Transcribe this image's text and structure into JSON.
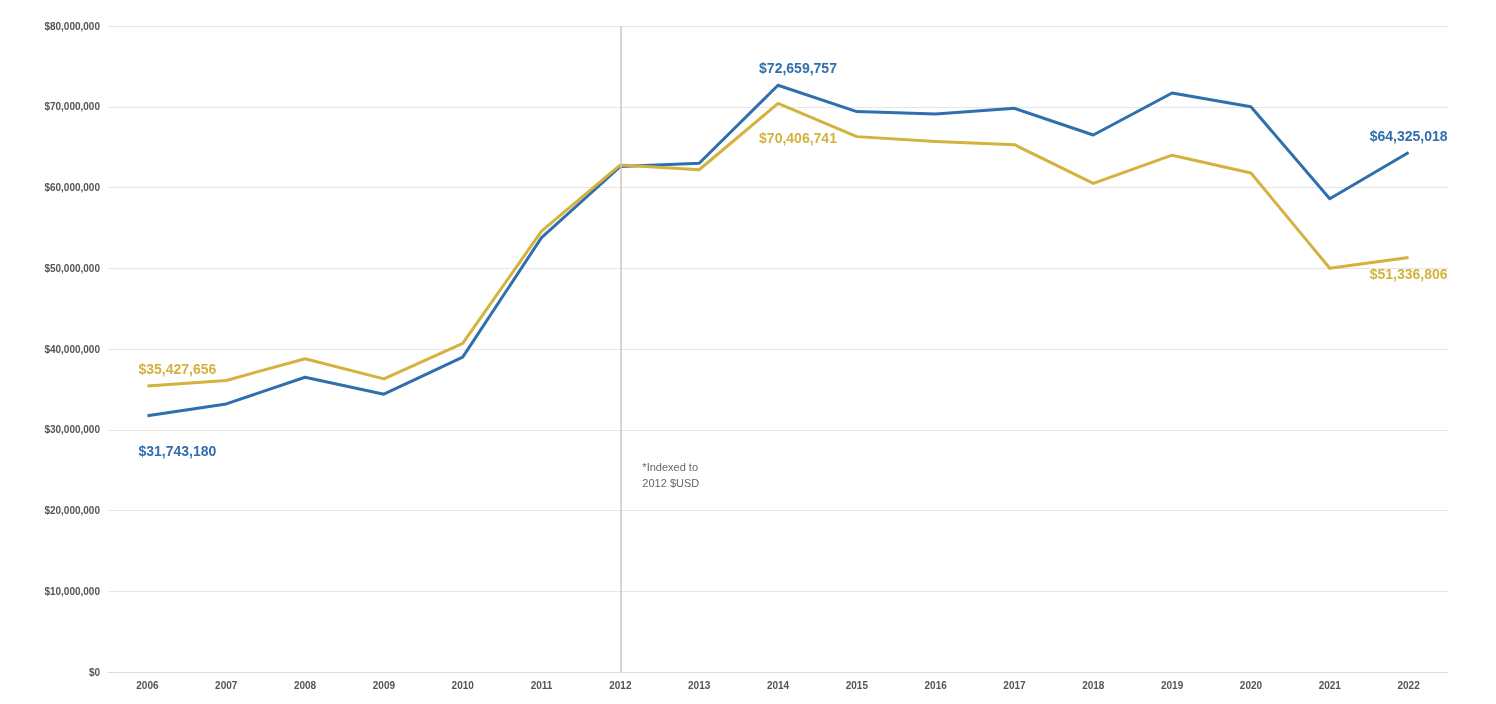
{
  "chart_data": {
    "type": "line",
    "categories": [
      "2006",
      "2007",
      "2008",
      "2009",
      "2010",
      "2011",
      "2012",
      "2013",
      "2014",
      "2015",
      "2016",
      "2017",
      "2018",
      "2019",
      "2020",
      "2021",
      "2022"
    ],
    "series": [
      {
        "color": "#2f6fad",
        "values": [
          31743180,
          33200000,
          36500000,
          34400000,
          39000000,
          53800000,
          62600000,
          63000000,
          72659757,
          69400000,
          69100000,
          69800000,
          66500000,
          71700000,
          70000000,
          58600000,
          64325018
        ],
        "value_labels": [
          "$31,743,180",
          null,
          null,
          null,
          null,
          null,
          null,
          null,
          "$72,659,757",
          null,
          null,
          null,
          null,
          null,
          null,
          null,
          "$64,325,018"
        ]
      },
      {
        "color": "#d4b23e",
        "values": [
          35427656,
          36100000,
          38800000,
          36300000,
          40700000,
          54600000,
          62800000,
          62200000,
          70406741,
          66300000,
          65700000,
          65300000,
          60500000,
          64000000,
          61800000,
          50000000,
          51336806
        ],
        "value_labels": [
          "$35,427,656",
          null,
          null,
          null,
          null,
          null,
          null,
          null,
          "$70,406,741",
          null,
          null,
          null,
          null,
          null,
          null,
          null,
          "$51,336,806"
        ]
      }
    ],
    "ylim": [
      0,
      80000000
    ],
    "yticks": [
      {
        "value": 0,
        "label": "$0"
      },
      {
        "value": 10000000,
        "label": "$10,000,000"
      },
      {
        "value": 20000000,
        "label": "$20,000,000"
      },
      {
        "value": 30000000,
        "label": "$30,000,000"
      },
      {
        "value": 40000000,
        "label": "$40,000,000"
      },
      {
        "value": 50000000,
        "label": "$50,000,000"
      },
      {
        "value": 60000000,
        "label": "$60,000,000"
      },
      {
        "value": 70000000,
        "label": "$70,000,000"
      },
      {
        "value": 80000000,
        "label": "$80,000,000"
      }
    ],
    "grid": "y",
    "marker": "none",
    "line_style": "solid",
    "ref_lines": [
      {
        "axis": "x",
        "value": "2012",
        "color": "#c8c8c8"
      }
    ],
    "annotations": [
      "*Indexed to\n2012 $USD"
    ]
  }
}
